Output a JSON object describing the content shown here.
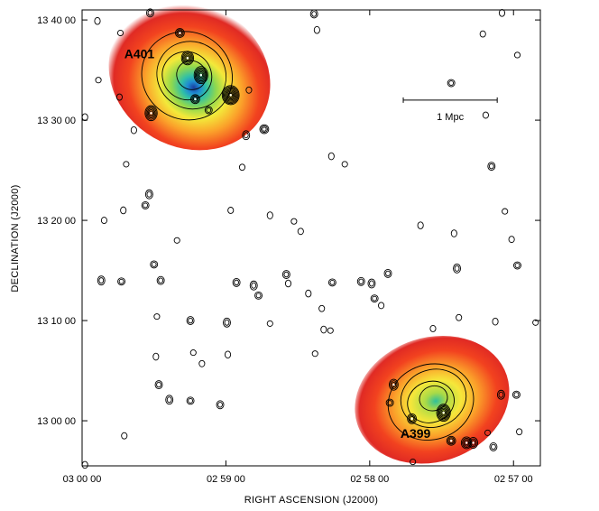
{
  "chart_data": {
    "type": "scatter",
    "xlabel": "RIGHT ASCENSION  (J2000)",
    "ylabel": "DECLINATION (J2000)",
    "x_ticks": [
      "03 00 00",
      "02 59 00",
      "02 58 00",
      "02 57 00"
    ],
    "y_ticks": [
      "13 00 00",
      "13 10 00",
      "13 20 00",
      "13 30 00",
      "13 40 00"
    ],
    "x_tick_arcmin": [
      0,
      15,
      30,
      45
    ],
    "y_tick_arcmin": [
      0,
      10,
      20,
      30,
      40
    ],
    "xlim_arcmin": [
      0,
      47.8
    ],
    "ylim_arcmin": [
      -4.5,
      41
    ],
    "x_reversed": true,
    "grid": false,
    "scale_bar": {
      "label": "1 Mpc",
      "x_start_arcmin": 33.5,
      "x_end_arcmin": 43.3,
      "y_arcmin": 32
    },
    "clusters": [
      {
        "name": "A401",
        "label_x_arcmin": 4.4,
        "label_y_arcmin": 36.2,
        "center_x_arcmin": 11.2,
        "center_y_arcmin": 34.5,
        "x_extent_arcmin": 8.7,
        "y_extent_arcmin": 7.2,
        "rotation_deg": 30
      },
      {
        "name": "A399",
        "label_x_arcmin": 33.2,
        "label_y_arcmin": -1.7,
        "center_x_arcmin": 36.5,
        "center_y_arcmin": 2.1,
        "x_extent_arcmin": 8.2,
        "y_extent_arcmin": 6.2,
        "rotation_deg": -18
      }
    ],
    "sources": [
      [
        10.2,
        38.7,
        3
      ],
      [
        11.0,
        36.2,
        5
      ],
      [
        12.4,
        34.5,
        6
      ],
      [
        11.8,
        32.1,
        3
      ],
      [
        15.5,
        32.5,
        8
      ],
      [
        7.2,
        30.7,
        5
      ],
      [
        13.2,
        31.0,
        2
      ],
      [
        17.4,
        33.0,
        1
      ],
      [
        17.1,
        28.5,
        2
      ],
      [
        19.0,
        29.1,
        3
      ],
      [
        7.1,
        40.7,
        2
      ],
      [
        1.6,
        39.9,
        1
      ],
      [
        4.0,
        38.7,
        1
      ],
      [
        24.2,
        40.6,
        2
      ],
      [
        24.5,
        39.0,
        1
      ],
      [
        38.5,
        33.7,
        2
      ],
      [
        41.8,
        38.6,
        1
      ],
      [
        43.8,
        40.7,
        1
      ],
      [
        45.4,
        36.5,
        1
      ],
      [
        42.1,
        30.5,
        1
      ],
      [
        0.3,
        30.3,
        1
      ],
      [
        1.7,
        34.0,
        1
      ],
      [
        3.9,
        32.3,
        1
      ],
      [
        5.4,
        29.0,
        1
      ],
      [
        4.6,
        25.6,
        1
      ],
      [
        16.7,
        25.3,
        1
      ],
      [
        26.0,
        26.4,
        1
      ],
      [
        27.4,
        25.6,
        1
      ],
      [
        42.7,
        25.4,
        2
      ],
      [
        7.0,
        22.6,
        2
      ],
      [
        6.6,
        21.5,
        2
      ],
      [
        2.3,
        20.0,
        1
      ],
      [
        4.3,
        21.0,
        1
      ],
      [
        9.9,
        18.0,
        1
      ],
      [
        15.5,
        21.0,
        1
      ],
      [
        19.6,
        20.5,
        1
      ],
      [
        22.1,
        19.9,
        1
      ],
      [
        22.8,
        18.9,
        1
      ],
      [
        35.3,
        19.5,
        1
      ],
      [
        44.1,
        20.9,
        1
      ],
      [
        44.8,
        18.1,
        1
      ],
      [
        38.8,
        18.7,
        1
      ],
      [
        7.5,
        15.6,
        2
      ],
      [
        8.2,
        14.0,
        2
      ],
      [
        2.0,
        14.0,
        2
      ],
      [
        4.1,
        13.9,
        2
      ],
      [
        16.1,
        13.8,
        2
      ],
      [
        17.9,
        13.5,
        2
      ],
      [
        18.4,
        12.5,
        2
      ],
      [
        21.3,
        14.6,
        2
      ],
      [
        21.5,
        13.7,
        1
      ],
      [
        26.1,
        13.8,
        2
      ],
      [
        29.1,
        13.9,
        2
      ],
      [
        30.2,
        13.7,
        2
      ],
      [
        30.5,
        12.2,
        2
      ],
      [
        31.9,
        14.7,
        2
      ],
      [
        39.1,
        15.2,
        2
      ],
      [
        45.4,
        15.5,
        2
      ],
      [
        31.2,
        11.5,
        1
      ],
      [
        23.6,
        12.7,
        1
      ],
      [
        7.8,
        10.4,
        1
      ],
      [
        11.3,
        10.0,
        2
      ],
      [
        15.1,
        9.8,
        2
      ],
      [
        19.6,
        9.7,
        1
      ],
      [
        25.0,
        11.2,
        1
      ],
      [
        25.2,
        9.1,
        1
      ],
      [
        25.9,
        9.0,
        1
      ],
      [
        39.3,
        10.3,
        1
      ],
      [
        43.1,
        9.9,
        1
      ],
      [
        47.3,
        9.8,
        1
      ],
      [
        36.6,
        9.2,
        1
      ],
      [
        7.7,
        6.4,
        1
      ],
      [
        11.6,
        6.8,
        1
      ],
      [
        12.5,
        5.7,
        1
      ],
      [
        15.2,
        6.6,
        1
      ],
      [
        24.3,
        6.7,
        1
      ],
      [
        8.0,
        3.6,
        2
      ],
      [
        9.1,
        2.1,
        2
      ],
      [
        11.3,
        2.0,
        2
      ],
      [
        14.4,
        1.6,
        2
      ],
      [
        32.5,
        3.6,
        3
      ],
      [
        32.1,
        1.8,
        2
      ],
      [
        34.4,
        0.2,
        3
      ],
      [
        37.7,
        0.8,
        6
      ],
      [
        38.5,
        -2.0,
        3
      ],
      [
        40.1,
        -2.2,
        4
      ],
      [
        40.8,
        -2.2,
        3
      ],
      [
        42.3,
        -1.2,
        1
      ],
      [
        42.9,
        -2.6,
        2
      ],
      [
        43.7,
        2.6,
        2
      ],
      [
        45.3,
        2.6,
        2
      ],
      [
        4.4,
        -1.5,
        1
      ],
      [
        0.3,
        -4.4,
        1
      ],
      [
        34.5,
        -4.1,
        1
      ],
      [
        45.6,
        -1.1,
        1
      ]
    ]
  }
}
